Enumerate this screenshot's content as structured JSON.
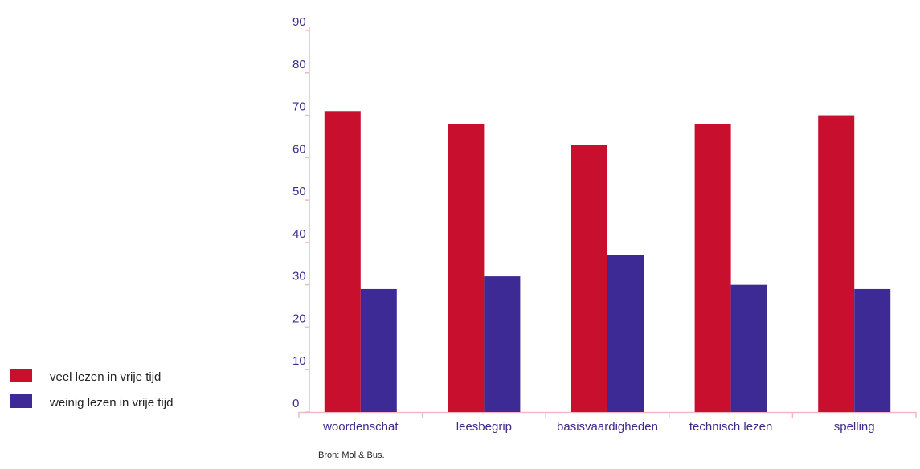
{
  "chart_data": {
    "type": "bar",
    "categories": [
      "woordenschat",
      "leesbegrip",
      "basisvaardigheden",
      "technisch lezen",
      "spelling"
    ],
    "series": [
      {
        "name": "veel lezen in vrije tijd",
        "color": "#c8102e",
        "values": [
          71,
          68,
          63,
          68,
          70
        ]
      },
      {
        "name": "weinig lezen in vrije tijd",
        "color": "#3d2a94",
        "values": [
          29,
          32,
          37,
          30,
          29
        ]
      }
    ],
    "yticks": [
      0,
      10,
      20,
      30,
      40,
      50,
      60,
      70,
      80,
      90
    ],
    "ylim": [
      0,
      90
    ],
    "axis_color": "#f2b8c6",
    "label_color": "#3d2a8c",
    "legend_position": "left",
    "source": "Bron: Mol & Bus."
  }
}
